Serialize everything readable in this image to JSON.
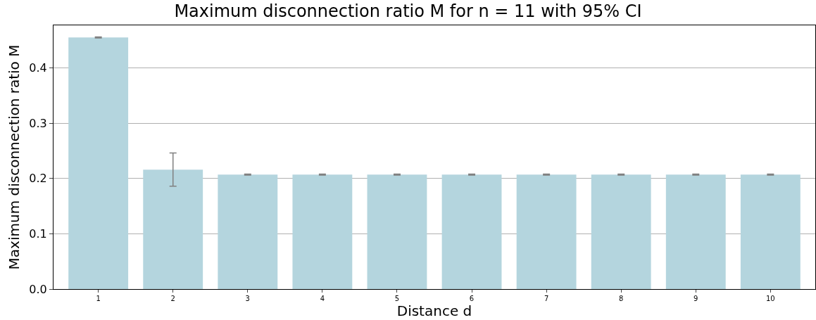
{
  "chart_data": {
    "type": "bar",
    "title": "Maximum disconnection ratio M for n = 11 with 95% CI",
    "xlabel": "Distance d",
    "ylabel": "Maximum disconnection ratio M",
    "categories": [
      "1",
      "2",
      "3",
      "4",
      "5",
      "6",
      "7",
      "8",
      "9",
      "10"
    ],
    "values": [
      0.455,
      0.216,
      0.207,
      0.207,
      0.207,
      0.207,
      0.207,
      0.207,
      0.207,
      0.207
    ],
    "errors": [
      0.001,
      [
        0.186,
        0.246
      ],
      0.001,
      0.001,
      0.001,
      0.001,
      0.001,
      0.001,
      0.001,
      0.001
    ],
    "color": "#b4d5de",
    "ylim": [
      0,
      0.477
    ],
    "yticks": [
      {
        "value": 0,
        "label": "0.0"
      },
      0.1,
      0.2,
      0.3,
      0.4
    ],
    "grid": "y",
    "legend": false
  }
}
